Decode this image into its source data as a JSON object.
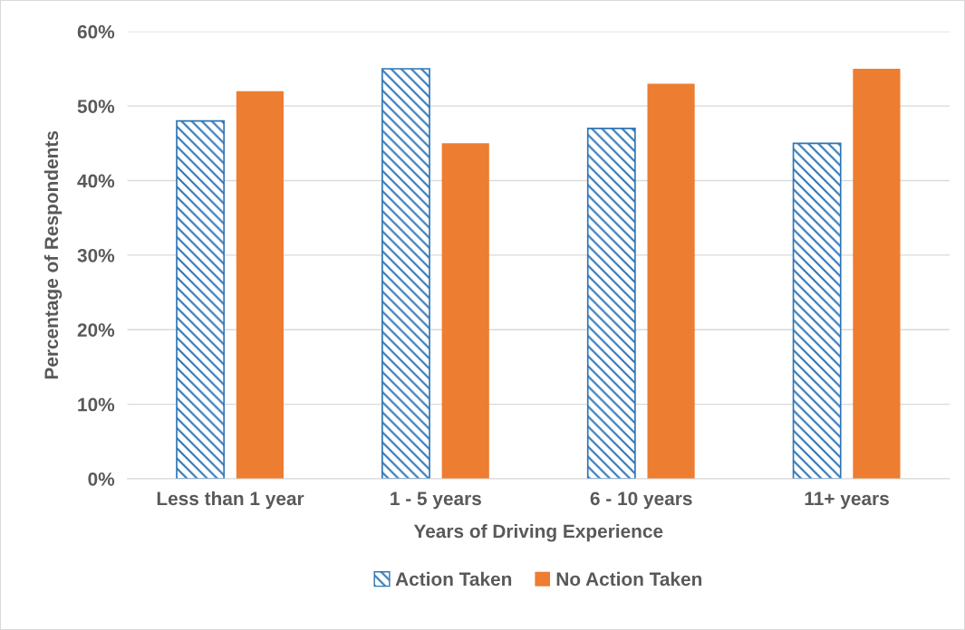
{
  "chart_data": {
    "type": "bar",
    "xlabel": "Years of Driving Experience",
    "ylabel": "Percentage of Respondents",
    "categories": [
      "Less than 1 year",
      "1 - 5 years",
      "6 - 10 years",
      "11+ years"
    ],
    "series": [
      {
        "name": "Action Taken",
        "color": "#2e75b6",
        "values": [
          48,
          55,
          47,
          45
        ]
      },
      {
        "name": "No Action Taken",
        "color": "#ed7d31",
        "values": [
          52,
          45,
          53,
          55
        ]
      }
    ],
    "ylim": [
      0,
      60
    ],
    "yticks": [
      {
        "value": 0,
        "label": "0%"
      },
      {
        "value": 10,
        "label": "10%"
      },
      {
        "value": 20,
        "label": "20%"
      },
      {
        "value": 30,
        "label": "30%"
      },
      {
        "value": 40,
        "label": "40%"
      },
      {
        "value": 50,
        "label": "50%"
      },
      {
        "value": 60,
        "label": "60%"
      }
    ],
    "grid": "y",
    "legend": "bottom"
  }
}
